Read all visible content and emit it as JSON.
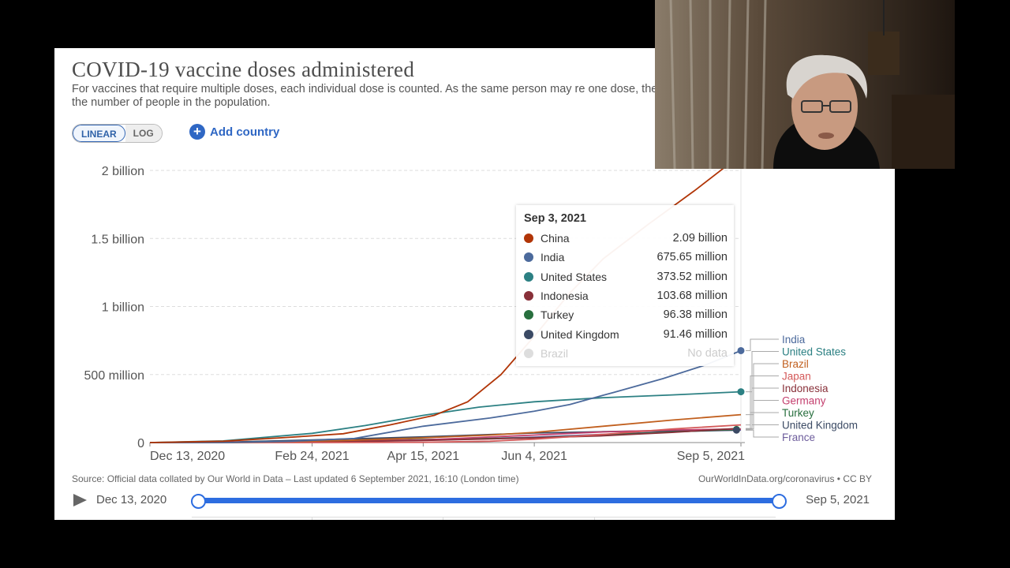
{
  "header": {
    "title": "COVID-19 vaccine doses administered",
    "subtitle": "For vaccines that require multiple doses, each individual dose is counted. As the same person may re one dose, the number of doses can be higher than the number of people in the population."
  },
  "controls": {
    "linear_label": "LINEAR",
    "log_label": "LOG",
    "active_scale": "linear",
    "add_country_label": "Add country",
    "add_country_icon": "plus-circle-icon"
  },
  "chart_data": {
    "type": "line",
    "title": "COVID-19 vaccine doses administered",
    "xlabel": "",
    "ylabel": "",
    "x_ticks": [
      "Dec 13, 2020",
      "Feb 24, 2021",
      "Apr 15, 2021",
      "Jun 4, 2021",
      "Sep 5, 2021"
    ],
    "y_ticks": [
      "0",
      "500 million",
      "1 billion",
      "1.5 billion",
      "2 billion"
    ],
    "y_tick_values": [
      0,
      500000000,
      1000000000,
      1500000000,
      2000000000
    ],
    "xlim": [
      "2020-12-13",
      "2021-09-05"
    ],
    "ylim": [
      0,
      2000000000
    ],
    "grid": true,
    "legend_position": "right (inline labels)",
    "series": [
      {
        "name": "China",
        "color": "#b13507",
        "x": [
          "2020-12-13",
          "2021-01-15",
          "2021-02-15",
          "2021-03-10",
          "2021-03-31",
          "2021-04-20",
          "2021-05-05",
          "2021-05-20",
          "2021-06-05",
          "2021-06-20",
          "2021-07-05",
          "2021-07-25",
          "2021-08-15",
          "2021-09-03"
        ],
        "y": [
          0,
          10000000,
          40000000,
          65000000,
          130000000,
          200000000,
          300000000,
          500000000,
          800000000,
          1100000000,
          1350000000,
          1600000000,
          1850000000,
          2090000000
        ]
      },
      {
        "name": "India",
        "color": "#4c6a9c",
        "x": [
          "2020-12-13",
          "2021-01-16",
          "2021-02-15",
          "2021-03-15",
          "2021-04-15",
          "2021-05-15",
          "2021-06-04",
          "2021-06-20",
          "2021-07-10",
          "2021-08-01",
          "2021-08-20",
          "2021-09-05"
        ],
        "y": [
          0,
          0,
          10000000,
          30000000,
          120000000,
          180000000,
          230000000,
          280000000,
          370000000,
          470000000,
          570000000,
          675650000
        ]
      },
      {
        "name": "United States",
        "color": "#2c8083",
        "x": [
          "2020-12-13",
          "2021-01-15",
          "2021-02-24",
          "2021-03-20",
          "2021-04-15",
          "2021-05-10",
          "2021-06-04",
          "2021-07-05",
          "2021-08-05",
          "2021-09-05"
        ],
        "y": [
          0,
          12000000,
          68000000,
          125000000,
          200000000,
          260000000,
          300000000,
          330000000,
          350000000,
          373520000
        ]
      },
      {
        "name": "Brazil",
        "color": "#c15f1e",
        "x": [
          "2020-12-13",
          "2021-01-20",
          "2021-03-10",
          "2021-04-15",
          "2021-05-15",
          "2021-06-04",
          "2021-07-05",
          "2021-08-05",
          "2021-09-05"
        ],
        "y": [
          0,
          0,
          15000000,
          35000000,
          55000000,
          75000000,
          120000000,
          165000000,
          205000000
        ]
      },
      {
        "name": "Japan",
        "color": "#d45a5a",
        "x": [
          "2020-12-13",
          "2021-03-01",
          "2021-04-15",
          "2021-05-15",
          "2021-06-04",
          "2021-07-05",
          "2021-08-05",
          "2021-09-05"
        ],
        "y": [
          0,
          0,
          2000000,
          10000000,
          25000000,
          60000000,
          100000000,
          130000000
        ]
      },
      {
        "name": "Indonesia",
        "color": "#883039",
        "x": [
          "2020-12-13",
          "2021-01-13",
          "2021-03-01",
          "2021-04-15",
          "2021-06-04",
          "2021-07-05",
          "2021-08-05",
          "2021-09-03"
        ],
        "y": [
          0,
          0,
          5000000,
          15000000,
          35000000,
          50000000,
          75000000,
          103680000
        ]
      },
      {
        "name": "Germany",
        "color": "#c43f6e",
        "x": [
          "2020-12-13",
          "2021-01-15",
          "2021-02-24",
          "2021-04-15",
          "2021-06-04",
          "2021-07-05",
          "2021-08-05",
          "2021-09-05"
        ],
        "y": [
          0,
          2000000,
          6000000,
          20000000,
          55000000,
          78000000,
          92000000,
          100000000
        ]
      },
      {
        "name": "Turkey",
        "color": "#286f3e",
        "x": [
          "2020-12-13",
          "2021-01-14",
          "2021-02-24",
          "2021-04-15",
          "2021-06-04",
          "2021-07-05",
          "2021-08-05",
          "2021-09-03"
        ],
        "y": [
          0,
          0,
          10000000,
          22000000,
          35000000,
          55000000,
          78000000,
          96380000
        ]
      },
      {
        "name": "United Kingdom",
        "color": "#3b4a64",
        "x": [
          "2020-12-13",
          "2021-01-15",
          "2021-02-24",
          "2021-04-15",
          "2021-06-04",
          "2021-07-05",
          "2021-08-05",
          "2021-09-03"
        ],
        "y": [
          0,
          3000000,
          19000000,
          42000000,
          70000000,
          80000000,
          88000000,
          91460000
        ]
      },
      {
        "name": "France",
        "color": "#6d5d9c",
        "x": [
          "2020-12-13",
          "2021-01-15",
          "2021-02-24",
          "2021-04-15",
          "2021-06-04",
          "2021-07-05",
          "2021-08-05",
          "2021-09-05"
        ],
        "y": [
          0,
          1000000,
          5000000,
          17000000,
          40000000,
          60000000,
          80000000,
          92000000
        ]
      }
    ]
  },
  "tooltip": {
    "date": "Sep 3, 2021",
    "rows": [
      {
        "name": "China",
        "value": "2.09 billion",
        "color": "#b13507"
      },
      {
        "name": "India",
        "value": "675.65 million",
        "color": "#4c6a9c"
      },
      {
        "name": "United States",
        "value": "373.52 million",
        "color": "#2c8083"
      },
      {
        "name": "Indonesia",
        "value": "103.68 million",
        "color": "#883039"
      },
      {
        "name": "Turkey",
        "value": "96.38 million",
        "color": "#286f3e"
      },
      {
        "name": "United Kingdom",
        "value": "91.46 million",
        "color": "#3b4a64"
      },
      {
        "name": "Brazil",
        "value": "No data",
        "color": "#dddddd",
        "nodata": true
      }
    ]
  },
  "footer": {
    "source": "Source: Official data collated by Our World in Data – Last updated 6 September 2021, 16:10 (London time)",
    "credit": "OurWorldInData.org/coronavirus • CC BY"
  },
  "timeline": {
    "start_label": "Dec 13, 2020",
    "end_label": "Sep 5, 2021",
    "play_icon": "play-icon",
    "range_start_fraction": 0,
    "range_end_fraction": 1
  },
  "webcam": {
    "description_icon": "webcam-video-feed"
  }
}
